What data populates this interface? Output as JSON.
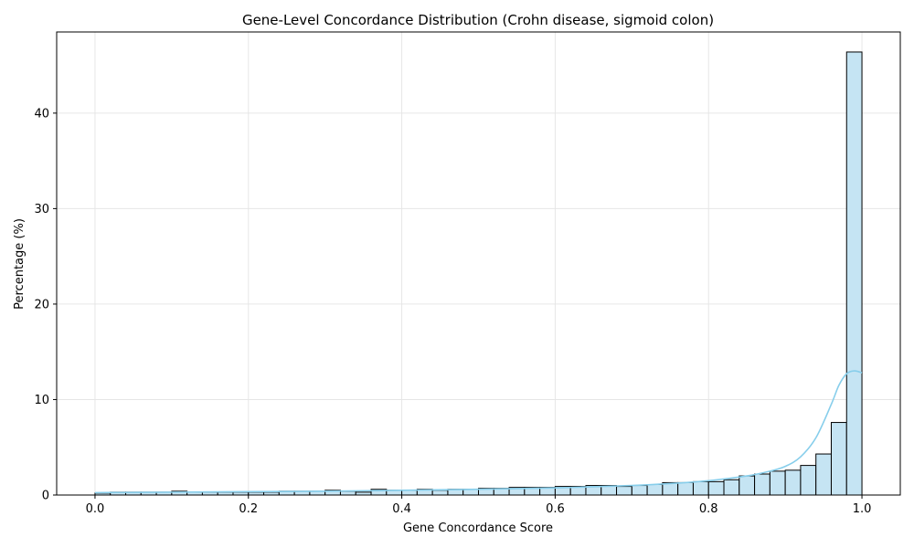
{
  "chart_data": {
    "type": "bar",
    "title": "Gene-Level Concordance Distribution (Crohn disease, sigmoid colon)",
    "xlabel": "Gene Concordance Score",
    "ylabel": "Percentage (%)",
    "xlim": [
      -0.05,
      1.05
    ],
    "ylim": [
      0,
      48.5
    ],
    "xticks": [
      0.0,
      0.2,
      0.4,
      0.6,
      0.8,
      1.0
    ],
    "xtick_labels": [
      "0.0",
      "0.2",
      "0.4",
      "0.6",
      "0.8",
      "1.0"
    ],
    "yticks": [
      0,
      10,
      20,
      30,
      40
    ],
    "ytick_labels": [
      "0",
      "10",
      "20",
      "30",
      "40"
    ],
    "grid": true,
    "bin_edges_start": 0.0,
    "bin_width": 0.02,
    "values": [
      0.2,
      0.3,
      0.3,
      0.3,
      0.3,
      0.4,
      0.3,
      0.3,
      0.3,
      0.3,
      0.3,
      0.3,
      0.4,
      0.4,
      0.4,
      0.5,
      0.4,
      0.3,
      0.6,
      0.5,
      0.5,
      0.6,
      0.5,
      0.6,
      0.6,
      0.7,
      0.7,
      0.8,
      0.8,
      0.8,
      0.9,
      0.9,
      1.0,
      1.0,
      0.9,
      1.0,
      1.1,
      1.3,
      1.3,
      1.4,
      1.4,
      1.6,
      2.0,
      2.2,
      2.5,
      2.6,
      3.1,
      4.3,
      7.6,
      46.4
    ],
    "kde": {
      "x": [
        0.0,
        0.1,
        0.2,
        0.3,
        0.4,
        0.5,
        0.6,
        0.7,
        0.75,
        0.8,
        0.85,
        0.88,
        0.9,
        0.92,
        0.94,
        0.96,
        0.97,
        0.98,
        0.99,
        1.0
      ],
      "y": [
        0.25,
        0.3,
        0.35,
        0.4,
        0.5,
        0.6,
        0.75,
        1.0,
        1.2,
        1.5,
        2.0,
        2.5,
        3.0,
        4.0,
        6.0,
        9.5,
        11.5,
        12.7,
        13.0,
        12.8
      ]
    },
    "bar_color": "#c5e4f3",
    "line_color": "#87ceeb"
  }
}
